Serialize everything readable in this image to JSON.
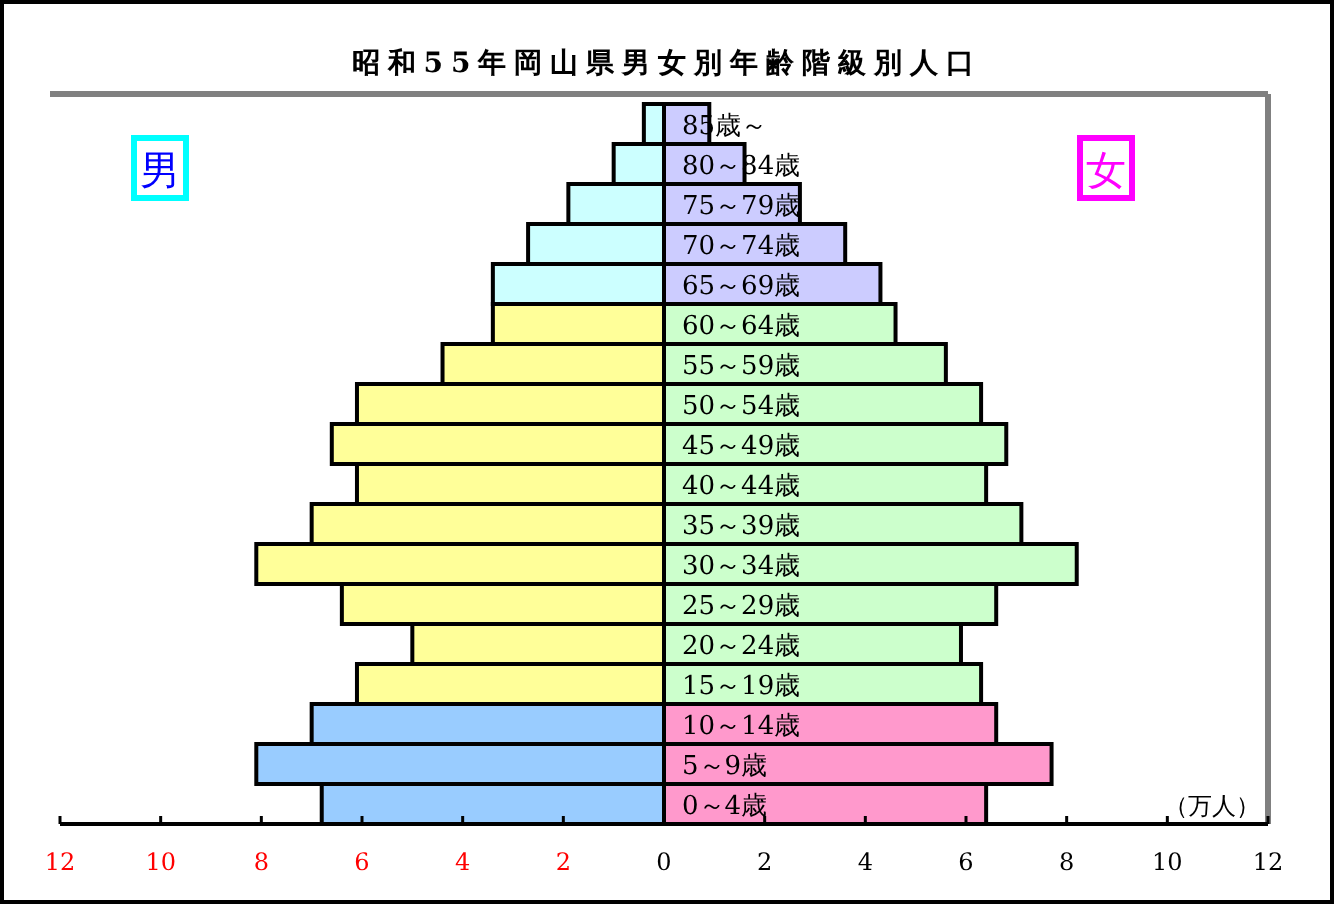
{
  "chart_data": {
    "type": "bar",
    "orientation": "horizontal",
    "title": "昭和55年岡山県男女別年齢階級別人口",
    "categories": [
      "85歳～",
      "80～84歳",
      "75～79歳",
      "70～74歳",
      "65～69歳",
      "60～64歳",
      "55～59歳",
      "50～54歳",
      "45～49歳",
      "40～44歳",
      "35～39歳",
      "30～34歳",
      "25～29歳",
      "20～24歳",
      "15～19歳",
      "10～14歳",
      "5～9歳",
      "0～4歳"
    ],
    "series": [
      {
        "values": [
          -0.4,
          -1.0,
          -1.9,
          -2.7,
          -3.4,
          -3.4,
          -4.4,
          -6.1,
          -6.6,
          -6.1,
          -7.0,
          -8.1,
          -6.4,
          -5.0,
          -6.1,
          -7.0,
          -8.1,
          -6.8
        ],
        "colors": [
          "#ccffff",
          "#ccffff",
          "#ccffff",
          "#ccffff",
          "#ccffff",
          "#ffff99",
          "#ffff99",
          "#ffff99",
          "#ffff99",
          "#ffff99",
          "#ffff99",
          "#ffff99",
          "#ffff99",
          "#ffff99",
          "#ffff99",
          "#99ccff",
          "#99ccff",
          "#99ccff"
        ]
      },
      {
        "values": [
          0.9,
          1.6,
          2.7,
          3.6,
          4.3,
          4.6,
          5.6,
          6.3,
          6.8,
          6.4,
          7.1,
          8.2,
          6.6,
          5.9,
          6.3,
          6.6,
          7.7,
          6.4
        ],
        "colors": [
          "#ccccff",
          "#ccccff",
          "#ccccff",
          "#ccccff",
          "#ccccff",
          "#ccffcc",
          "#ccffcc",
          "#ccffcc",
          "#ccffcc",
          "#ccffcc",
          "#ccffcc",
          "#ccffcc",
          "#ccffcc",
          "#ccffcc",
          "#ccffcc",
          "#ff99cc",
          "#ff99cc",
          "#ff99cc"
        ]
      }
    ],
    "xlim": [
      -12,
      12
    ],
    "xticks": [
      {
        "value": -12,
        "label": "12"
      },
      {
        "value": -10,
        "label": "10"
      },
      {
        "value": -8,
        "label": "8"
      },
      {
        "value": -6,
        "label": "6"
      },
      {
        "value": -4,
        "label": "4"
      },
      {
        "value": -2,
        "label": "2"
      },
      0,
      2,
      4,
      6,
      8,
      10,
      12
    ],
    "stacked": true,
    "annotations": [
      "男",
      "女",
      "（万人）"
    ]
  }
}
